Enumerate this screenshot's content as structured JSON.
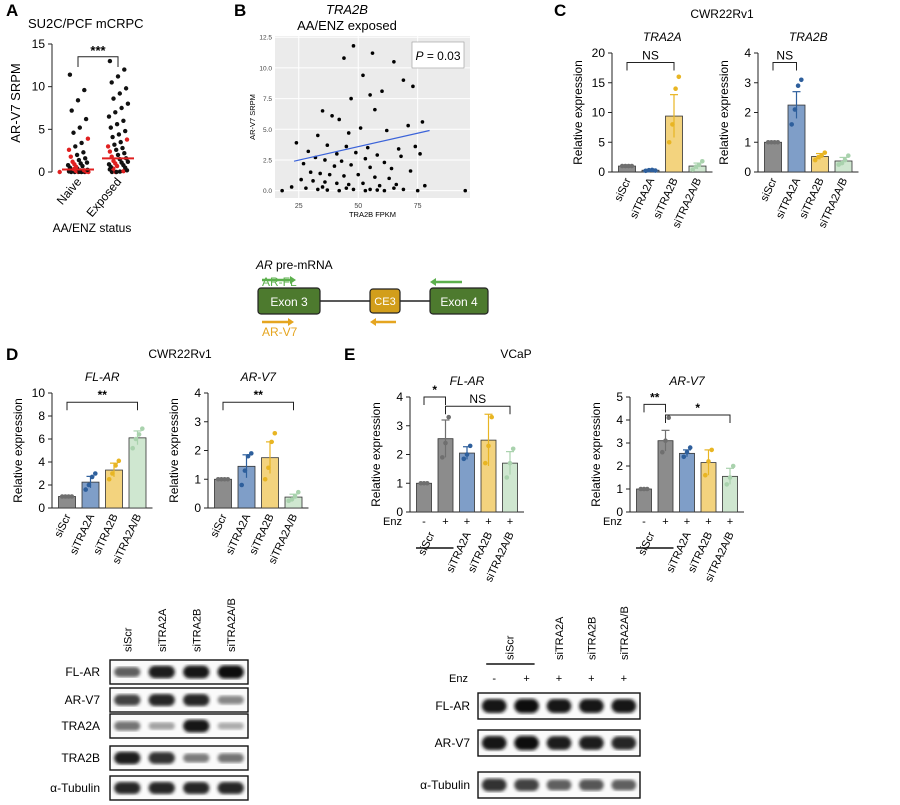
{
  "chart_data": [
    {
      "panel": "A",
      "type": "scatter",
      "title": "SU2C/PCF mCRPC",
      "ylabel": "AR-V7 SRPM",
      "xlabel": "AA/ENZ status",
      "categories": [
        "Naive",
        "Exposed"
      ],
      "ylim": [
        0,
        15
      ],
      "yticks": [
        0,
        5,
        10,
        15
      ],
      "median_lines": [
        0.3,
        1.6
      ],
      "sig": "***",
      "points": [
        [
          0,
          0
        ],
        [
          0,
          0
        ],
        [
          0,
          0
        ],
        [
          0,
          0
        ],
        [
          0,
          0
        ],
        [
          0,
          0
        ],
        [
          0,
          0
        ],
        [
          0,
          0.02
        ],
        [
          0,
          0.04
        ],
        [
          0,
          0.05
        ],
        [
          0,
          0.07
        ],
        [
          0,
          0.1
        ],
        [
          0,
          0.12
        ],
        [
          0,
          0.15
        ],
        [
          0,
          0.18
        ],
        [
          0,
          0.2
        ],
        [
          0,
          0.25
        ],
        [
          0,
          0.3
        ],
        [
          0,
          0.35
        ],
        [
          0,
          0.4
        ],
        [
          0,
          0.5
        ],
        [
          0,
          0.6
        ],
        [
          0,
          0.7
        ],
        [
          0,
          0.8
        ],
        [
          0,
          0.9
        ],
        [
          0,
          1.0
        ],
        [
          0,
          1.1
        ],
        [
          0,
          1.2
        ],
        [
          0,
          1.4
        ],
        [
          0,
          1.6
        ],
        [
          0,
          1.8
        ],
        [
          0,
          2.0
        ],
        [
          0,
          2.3
        ],
        [
          0,
          2.6
        ],
        [
          0,
          3.0
        ],
        [
          0,
          3.4
        ],
        [
          0,
          3.9
        ],
        [
          0,
          4.6
        ],
        [
          0,
          5.2
        ],
        [
          0,
          6.2
        ],
        [
          0,
          7.2
        ],
        [
          0,
          8.4
        ],
        [
          0,
          9.6
        ],
        [
          0,
          11.4
        ],
        [
          1,
          0
        ],
        [
          1,
          0
        ],
        [
          1,
          0
        ],
        [
          1,
          0.05
        ],
        [
          1,
          0.1
        ],
        [
          1,
          0.2
        ],
        [
          1,
          0.3
        ],
        [
          1,
          0.4
        ],
        [
          1,
          0.5
        ],
        [
          1,
          0.6
        ],
        [
          1,
          0.7
        ],
        [
          1,
          0.8
        ],
        [
          1,
          0.9
        ],
        [
          1,
          1.0
        ],
        [
          1,
          1.1
        ],
        [
          1,
          1.2
        ],
        [
          1,
          1.3
        ],
        [
          1,
          1.5
        ],
        [
          1,
          1.6
        ],
        [
          1,
          1.8
        ],
        [
          1,
          2.0
        ],
        [
          1,
          2.2
        ],
        [
          1,
          2.4
        ],
        [
          1,
          2.6
        ],
        [
          1,
          2.8
        ],
        [
          1,
          3.0
        ],
        [
          1,
          3.2
        ],
        [
          1,
          3.5
        ],
        [
          1,
          3.8
        ],
        [
          1,
          4.1
        ],
        [
          1,
          4.4
        ],
        [
          1,
          4.8
        ],
        [
          1,
          5.2
        ],
        [
          1,
          5.6
        ],
        [
          1,
          6.0
        ],
        [
          1,
          6.5
        ],
        [
          1,
          7.0
        ],
        [
          1,
          7.5
        ],
        [
          1,
          8.0
        ],
        [
          1,
          8.6
        ],
        [
          1,
          9.2
        ],
        [
          1,
          9.8
        ],
        [
          1,
          10.5
        ],
        [
          1,
          11.2
        ],
        [
          1,
          12.0
        ],
        [
          1,
          13.0
        ]
      ]
    },
    {
      "panel": "B",
      "type": "scatter",
      "title": "TRA2B",
      "subtitle": "AA/ENZ exposed",
      "xlabel": "TRA2B FPKM",
      "ylabel": "AR-V7 SRPM",
      "xlim": [
        15,
        97
      ],
      "ylim": [
        -0.6,
        12.6
      ],
      "xticks": [
        25,
        50,
        75
      ],
      "yticks": [
        0,
        2.5,
        5,
        7.5,
        10,
        12.5
      ],
      "ytick_labels": [
        "0.0",
        "2.5",
        "5.0",
        "7.5",
        "10.0",
        "12.5"
      ],
      "p_value_label": "P = 0.03",
      "fit_line": [
        [
          23,
          2.4
        ],
        [
          80,
          4.9
        ]
      ],
      "points": [
        [
          48,
          11.8
        ],
        [
          56,
          11.2
        ],
        [
          44,
          10.8
        ],
        [
          65,
          10.5
        ],
        [
          80,
          10.2
        ],
        [
          52,
          9.4
        ],
        [
          69,
          9.0
        ],
        [
          73,
          8.5
        ],
        [
          60,
          8.1
        ],
        [
          55,
          7.8
        ],
        [
          47,
          7.5
        ],
        [
          39,
          6.1
        ],
        [
          42,
          5.8
        ],
        [
          77,
          5.6
        ],
        [
          57,
          6.6
        ],
        [
          35,
          6.5
        ],
        [
          51,
          5.1
        ],
        [
          62,
          4.9
        ],
        [
          71,
          5.3
        ],
        [
          33,
          4.5
        ],
        [
          46,
          4.7
        ],
        [
          24,
          3.9
        ],
        [
          37,
          3.7
        ],
        [
          45,
          3.6
        ],
        [
          54,
          3.5
        ],
        [
          67,
          3.4
        ],
        [
          74,
          3.6
        ],
        [
          29,
          3.2
        ],
        [
          41,
          3.0
        ],
        [
          49,
          3.1
        ],
        [
          58,
          2.9
        ],
        [
          76,
          3.0
        ],
        [
          32,
          2.7
        ],
        [
          36,
          2.5
        ],
        [
          43,
          2.4
        ],
        [
          53,
          2.6
        ],
        [
          61,
          2.3
        ],
        [
          68,
          2.8
        ],
        [
          27,
          2.2
        ],
        [
          40,
          2.0
        ],
        [
          47,
          2.1
        ],
        [
          55,
          1.9
        ],
        [
          64,
          1.8
        ],
        [
          72,
          1.6
        ],
        [
          30,
          1.5
        ],
        [
          34,
          1.4
        ],
        [
          38,
          1.3
        ],
        [
          44,
          1.2
        ],
        [
          50,
          1.3
        ],
        [
          57,
          1.1
        ],
        [
          63,
          1.0
        ],
        [
          26,
          0.9
        ],
        [
          31,
          0.8
        ],
        [
          36,
          0.7
        ],
        [
          41,
          0.6
        ],
        [
          46,
          0.5
        ],
        [
          52,
          0.6
        ],
        [
          59,
          0.4
        ],
        [
          66,
          0.5
        ],
        [
          78,
          0.4
        ],
        [
          22,
          0.3
        ],
        [
          28,
          0.2
        ],
        [
          33,
          0.1
        ],
        [
          37,
          0.05
        ],
        [
          42,
          0.0
        ],
        [
          48,
          0.1
        ],
        [
          53,
          0.0
        ],
        [
          58,
          0.05
        ],
        [
          61,
          0.0
        ],
        [
          69,
          0.1
        ],
        [
          95,
          0.0
        ],
        [
          18,
          0.0
        ],
        [
          35,
          0.3
        ],
        [
          45,
          0.2
        ],
        [
          55,
          0.1
        ],
        [
          65,
          0.2
        ],
        [
          75,
          0.0
        ]
      ]
    },
    {
      "panel": "C",
      "type": "bar",
      "title": "TRA2A",
      "cell_line": "CWR22Rv1",
      "ylabel": "Relative expression",
      "categories": [
        "siScr",
        "siTRA2A",
        "siTRA2B",
        "siTRA2A/B"
      ],
      "values": [
        1,
        0.3,
        9.4,
        1.0
      ],
      "errors": [
        0.1,
        0.1,
        3.6,
        0.5
      ],
      "ylim": [
        0,
        20
      ],
      "yticks": [
        0,
        5,
        10,
        15,
        20
      ],
      "points": [
        [
          1,
          1,
          1,
          1
        ],
        [
          0.2,
          0.3,
          0.35,
          0.25
        ],
        [
          5,
          8,
          14,
          16
        ],
        [
          0.4,
          0.9,
          1.2,
          1.8
        ]
      ],
      "sig": [
        {
          "from": 0,
          "to": 2,
          "label": "NS"
        }
      ]
    },
    {
      "panel": "C",
      "type": "bar",
      "title": "TRA2B",
      "ylabel": "Relative expression",
      "categories": [
        "siScr",
        "siTRA2A",
        "siTRA2B",
        "siTRA2A/B"
      ],
      "values": [
        1,
        2.25,
        0.52,
        0.37
      ],
      "errors": [
        0.02,
        0.45,
        0.1,
        0.12
      ],
      "ylim": [
        0,
        4
      ],
      "yticks": [
        0,
        1,
        2,
        3,
        4
      ],
      "points": [
        [
          1,
          1,
          1,
          1
        ],
        [
          1.6,
          2.1,
          2.9,
          3.1
        ],
        [
          0.4,
          0.5,
          0.55,
          0.65
        ],
        [
          0.25,
          0.3,
          0.4,
          0.55
        ]
      ],
      "sig": [
        {
          "from": 0,
          "to": 1,
          "label": "NS"
        }
      ]
    },
    {
      "panel": "D",
      "type": "bar",
      "title": "FL-AR",
      "cell_line": "CWR22Rv1",
      "ylabel": "Relative expression",
      "categories": [
        "siScr",
        "siTRA2A",
        "siTRA2B",
        "siTRA2A/B"
      ],
      "values": [
        1,
        2.25,
        3.3,
        6.1
      ],
      "errors": [
        0.02,
        0.5,
        0.6,
        0.6
      ],
      "ylim": [
        0,
        10
      ],
      "yticks": [
        0,
        2,
        4,
        6,
        8,
        10
      ],
      "points": [
        [
          1,
          1,
          1,
          1
        ],
        [
          1.6,
          2.0,
          2.7,
          3.0
        ],
        [
          2.5,
          3.0,
          3.7,
          4.1
        ],
        [
          5.2,
          6.0,
          6.4,
          6.9
        ]
      ],
      "sig": [
        {
          "from": 0,
          "to": 3,
          "label": "**"
        }
      ]
    },
    {
      "panel": "D",
      "type": "bar",
      "title": "AR-V7",
      "ylabel": "Relative expression",
      "categories": [
        "siScr",
        "siTRA2A",
        "siTRA2B",
        "siTRA2A/B"
      ],
      "values": [
        1,
        1.45,
        1.75,
        0.38
      ],
      "errors": [
        0.02,
        0.4,
        0.55,
        0.1
      ],
      "ylim": [
        0,
        4
      ],
      "yticks": [
        0,
        1,
        2,
        3,
        4
      ],
      "points": [
        [
          1,
          1,
          1,
          1
        ],
        [
          0.8,
          1.3,
          1.8,
          1.9
        ],
        [
          1.0,
          1.4,
          2.3,
          2.6
        ],
        [
          0.25,
          0.3,
          0.4,
          0.55
        ]
      ],
      "sig": [
        {
          "from": 0,
          "to": 3,
          "label": "**"
        }
      ]
    },
    {
      "panel": "E",
      "type": "bar",
      "title": "FL-AR",
      "cell_line": "VCaP",
      "ylabel": "Relative expression",
      "treatment_label": "Enz",
      "treatment": [
        "-",
        "+",
        "+",
        "+",
        "+"
      ],
      "categories": [
        "siScr",
        "siScr",
        "siTRA2A",
        "siTRA2B",
        "siTRA2A/B"
      ],
      "category_labels": [
        "siScr",
        "siTRA2A",
        "siTRA2B",
        "siTRA2A/B"
      ],
      "values": [
        1,
        2.55,
        2.05,
        2.5,
        1.7
      ],
      "errors": [
        0.02,
        0.65,
        0.22,
        0.9,
        0.4
      ],
      "ylim": [
        0,
        4
      ],
      "yticks": [
        0,
        1,
        2,
        3,
        4
      ],
      "points": [
        [
          1,
          1,
          1
        ],
        [
          1.9,
          2.4,
          3.3
        ],
        [
          1.85,
          2.0,
          2.3
        ],
        [
          1.7,
          2.3,
          3.3
        ],
        [
          1.2,
          1.7,
          2.2
        ]
      ],
      "sig": [
        {
          "from": 0,
          "to": 1,
          "label": "*"
        },
        {
          "from": 1,
          "to": 4,
          "label": "NS"
        }
      ]
    },
    {
      "panel": "E",
      "type": "bar",
      "title": "AR-V7",
      "ylabel": "Relative expression",
      "treatment_label": "Enz",
      "treatment": [
        "-",
        "+",
        "+",
        "+",
        "+"
      ],
      "categories": [
        "siScr",
        "siScr",
        "siTRA2A",
        "siTRA2B",
        "siTRA2A/B"
      ],
      "category_labels": [
        "siScr",
        "siTRA2A",
        "siTRA2B",
        "siTRA2A/B"
      ],
      "values": [
        1,
        3.1,
        2.55,
        2.15,
        1.55
      ],
      "errors": [
        0.02,
        0.45,
        0.15,
        0.55,
        0.35
      ],
      "ylim": [
        0,
        5
      ],
      "yticks": [
        0,
        1,
        2,
        3,
        4,
        5
      ],
      "points": [
        [
          1,
          1,
          1
        ],
        [
          2.6,
          3.1,
          4.1
        ],
        [
          2.4,
          2.6,
          2.8
        ],
        [
          1.6,
          2.2,
          2.7
        ],
        [
          1.2,
          1.5,
          2.0
        ]
      ],
      "sig": [
        {
          "from": 0,
          "to": 1,
          "label": "**"
        },
        {
          "from": 1,
          "to": 4,
          "label": "*"
        }
      ]
    }
  ],
  "panel_letters": [
    "A",
    "B",
    "C",
    "D",
    "E"
  ],
  "colors": {
    "grey": "#8c8c8c",
    "blue": "#7f9ec8",
    "yellow": "#f3d37e",
    "green": "#cfe7d0",
    "dot_grey": "#6f6f6f",
    "dot_blue": "#2e5f9c",
    "dot_yellow": "#e8b523",
    "dot_green": "#a9d2ad",
    "red": "#e02020",
    "fit": "#3b63d9",
    "exon": "#4d7a2e",
    "ce3": "#d29e1b",
    "arrow_green": "#5cb04d",
    "arrow_yellow": "#e5a520"
  },
  "schematic": {
    "title_gene": "AR",
    "title_rest": " pre-mRNA",
    "exon3": "Exon 3",
    "ce3": "CE3",
    "exon4": "Exon 4",
    "ar_fl": "AR-FL",
    "ar_v7": "AR-V7"
  },
  "blot_d": {
    "lanes": [
      "siScr",
      "siTRA2A",
      "siTRA2B",
      "siTRA2A/B"
    ],
    "rows": [
      {
        "label": "FL-AR",
        "intensity": [
          0.55,
          0.9,
          0.95,
          1.0
        ]
      },
      {
        "label": "AR-V7",
        "intensity": [
          0.7,
          0.85,
          0.85,
          0.35
        ]
      },
      {
        "label": "TRA2A",
        "intensity": [
          0.45,
          0.2,
          0.95,
          0.15
        ]
      },
      {
        "label": "TRA2B",
        "intensity": [
          0.9,
          0.8,
          0.4,
          0.45
        ]
      },
      {
        "label": "α-Tubulin",
        "intensity": [
          0.85,
          0.85,
          0.85,
          0.85
        ]
      }
    ]
  },
  "blot_e": {
    "lanes": [
      "siScr",
      "siTRA2A",
      "siTRA2B",
      "siTRA2A/B"
    ],
    "enz_label": "Enz",
    "enz": [
      "-",
      "+",
      "+",
      "+",
      "+"
    ],
    "rows": [
      {
        "label": "FL-AR",
        "intensity": [
          0.95,
          1.0,
          0.95,
          0.95,
          0.95
        ]
      },
      {
        "label": "AR-V7",
        "intensity": [
          0.95,
          1.0,
          0.9,
          0.9,
          0.85
        ]
      },
      {
        "label": "α-Tubulin",
        "intensity": [
          0.8,
          0.7,
          0.55,
          0.6,
          0.55
        ]
      }
    ]
  }
}
